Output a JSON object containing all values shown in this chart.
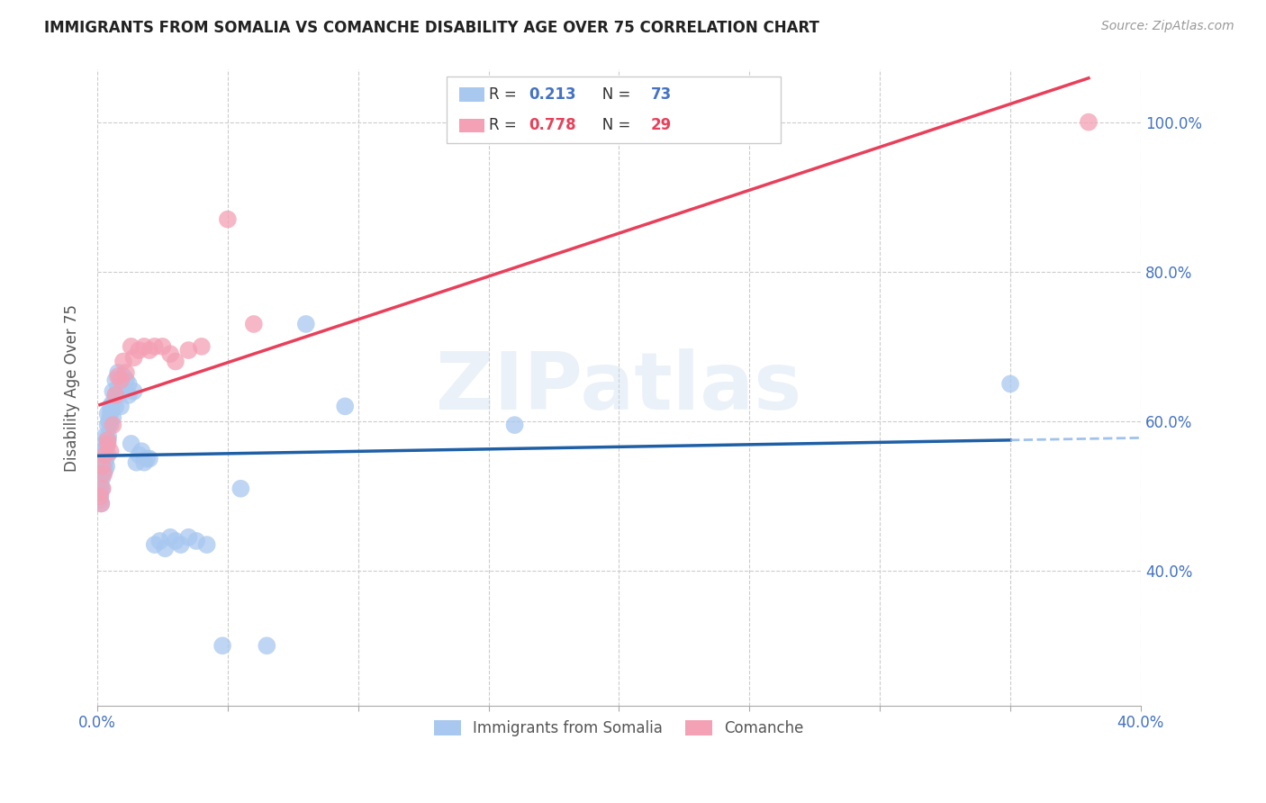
{
  "title": "IMMIGRANTS FROM SOMALIA VS COMANCHE DISABILITY AGE OVER 75 CORRELATION CHART",
  "source": "Source: ZipAtlas.com",
  "ylabel": "Disability Age Over 75",
  "x_min": 0.0,
  "x_max": 0.4,
  "y_min": 0.22,
  "y_max": 1.07,
  "x_ticks": [
    0.0,
    0.05,
    0.1,
    0.15,
    0.2,
    0.25,
    0.3,
    0.35,
    0.4
  ],
  "x_tick_labels": [
    "0.0%",
    "",
    "",
    "",
    "",
    "",
    "",
    "",
    "40.0%"
  ],
  "y_ticks": [
    0.4,
    0.6,
    0.8,
    1.0
  ],
  "y_tick_labels": [
    "40.0%",
    "60.0%",
    "80.0%",
    "100.0%"
  ],
  "color_somalia": "#A8C8F0",
  "color_comanche": "#F4A0B5",
  "color_somalia_line": "#1F5FA6",
  "color_comanche_line": "#E8405A",
  "color_dashed": "#90B8E8",
  "watermark_text": "ZIPatlas",
  "scatter_somalia_x": [
    0.0005,
    0.0008,
    0.001,
    0.001,
    0.001,
    0.0012,
    0.0013,
    0.0015,
    0.0015,
    0.0018,
    0.002,
    0.002,
    0.002,
    0.002,
    0.0022,
    0.0025,
    0.0025,
    0.003,
    0.003,
    0.003,
    0.003,
    0.0032,
    0.0035,
    0.0035,
    0.004,
    0.004,
    0.004,
    0.004,
    0.0042,
    0.0045,
    0.005,
    0.005,
    0.005,
    0.0055,
    0.006,
    0.006,
    0.006,
    0.007,
    0.007,
    0.007,
    0.008,
    0.008,
    0.009,
    0.009,
    0.01,
    0.01,
    0.011,
    0.012,
    0.012,
    0.013,
    0.014,
    0.015,
    0.016,
    0.017,
    0.018,
    0.019,
    0.02,
    0.022,
    0.024,
    0.026,
    0.028,
    0.03,
    0.032,
    0.035,
    0.038,
    0.042,
    0.048,
    0.055,
    0.065,
    0.08,
    0.095,
    0.16,
    0.35
  ],
  "scatter_somalia_y": [
    0.505,
    0.515,
    0.495,
    0.525,
    0.51,
    0.5,
    0.52,
    0.53,
    0.49,
    0.51,
    0.545,
    0.555,
    0.535,
    0.525,
    0.56,
    0.57,
    0.545,
    0.58,
    0.56,
    0.545,
    0.535,
    0.55,
    0.565,
    0.54,
    0.595,
    0.61,
    0.575,
    0.555,
    0.58,
    0.6,
    0.62,
    0.61,
    0.595,
    0.615,
    0.64,
    0.625,
    0.605,
    0.655,
    0.635,
    0.62,
    0.665,
    0.645,
    0.64,
    0.62,
    0.66,
    0.64,
    0.655,
    0.65,
    0.635,
    0.57,
    0.64,
    0.545,
    0.555,
    0.56,
    0.545,
    0.55,
    0.55,
    0.435,
    0.44,
    0.43,
    0.445,
    0.44,
    0.435,
    0.445,
    0.44,
    0.435,
    0.3,
    0.51,
    0.3,
    0.73,
    0.62,
    0.595,
    0.65
  ],
  "scatter_comanche_x": [
    0.001,
    0.0015,
    0.002,
    0.002,
    0.0025,
    0.003,
    0.004,
    0.004,
    0.005,
    0.006,
    0.007,
    0.008,
    0.009,
    0.01,
    0.011,
    0.013,
    0.014,
    0.016,
    0.018,
    0.02,
    0.022,
    0.025,
    0.028,
    0.03,
    0.035,
    0.04,
    0.05,
    0.06,
    0.38
  ],
  "scatter_comanche_y": [
    0.5,
    0.49,
    0.51,
    0.54,
    0.53,
    0.555,
    0.57,
    0.575,
    0.56,
    0.595,
    0.635,
    0.66,
    0.655,
    0.68,
    0.665,
    0.7,
    0.685,
    0.695,
    0.7,
    0.695,
    0.7,
    0.7,
    0.69,
    0.68,
    0.695,
    0.7,
    0.87,
    0.73,
    1.0
  ]
}
